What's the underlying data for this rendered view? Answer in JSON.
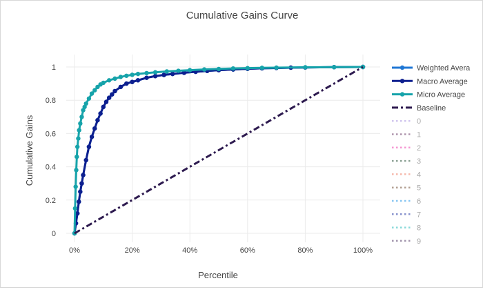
{
  "chart_data": {
    "type": "line",
    "title": "Cumulative Gains Curve",
    "xlabel": "Percentile",
    "ylabel": "Cumulative Gains",
    "xlim": [
      0,
      100
    ],
    "ylim": [
      0,
      1
    ],
    "x_ticks": [
      0,
      20,
      40,
      60,
      80,
      100
    ],
    "x_tick_labels": [
      "0%",
      "20%",
      "40%",
      "60%",
      "80%",
      "100%"
    ],
    "y_ticks": [
      0,
      0.2,
      0.4,
      0.6,
      0.8,
      1
    ],
    "y_tick_labels": [
      "0",
      "0.2",
      "0.4",
      "0.6",
      "0.8",
      "1"
    ],
    "grid": true,
    "legend_placement": "right",
    "series": [
      {
        "name": "Weighted Avera",
        "color": "#1f77d4",
        "style": "lines+markers",
        "visible": true,
        "x": [
          0,
          0.5,
          1,
          1.5,
          2,
          2.5,
          3,
          4,
          5,
          6,
          7,
          8,
          9,
          10,
          11,
          12,
          13,
          14,
          16,
          18,
          20,
          22,
          25,
          28,
          31,
          34,
          38,
          42,
          46,
          50,
          55,
          60,
          65,
          70,
          75,
          80,
          90,
          100
        ],
        "y": [
          0,
          0.06,
          0.12,
          0.19,
          0.25,
          0.3,
          0.35,
          0.44,
          0.52,
          0.58,
          0.63,
          0.68,
          0.72,
          0.76,
          0.79,
          0.815,
          0.835,
          0.855,
          0.88,
          0.9,
          0.91,
          0.92,
          0.935,
          0.945,
          0.952,
          0.958,
          0.965,
          0.971,
          0.976,
          0.981,
          0.985,
          0.989,
          0.992,
          0.994,
          0.996,
          0.997,
          0.999,
          1
        ]
      },
      {
        "name": "Macro Average",
        "color": "#0d1f8f",
        "style": "lines+markers",
        "visible": true,
        "x": [
          0,
          0.5,
          1,
          1.5,
          2,
          2.5,
          3,
          4,
          5,
          6,
          7,
          8,
          9,
          10,
          11,
          12,
          13,
          14,
          16,
          18,
          20,
          22,
          25,
          28,
          31,
          34,
          38,
          42,
          46,
          50,
          55,
          60,
          65,
          70,
          75,
          80,
          90,
          100
        ],
        "y": [
          0,
          0.06,
          0.12,
          0.19,
          0.25,
          0.3,
          0.35,
          0.44,
          0.52,
          0.58,
          0.63,
          0.68,
          0.72,
          0.76,
          0.79,
          0.815,
          0.835,
          0.855,
          0.88,
          0.9,
          0.91,
          0.92,
          0.935,
          0.945,
          0.952,
          0.958,
          0.965,
          0.971,
          0.976,
          0.981,
          0.985,
          0.989,
          0.992,
          0.994,
          0.996,
          0.997,
          0.999,
          1
        ]
      },
      {
        "name": "Micro Average",
        "color": "#16a3aa",
        "style": "lines+markers",
        "visible": true,
        "x": [
          0,
          0.2,
          0.4,
          0.6,
          0.8,
          1,
          1.3,
          1.6,
          2,
          2.5,
          3,
          3.5,
          4,
          5,
          6,
          7,
          8,
          9,
          10,
          12,
          14,
          16,
          18,
          20,
          22,
          25,
          28,
          32,
          36,
          40,
          45,
          50,
          55,
          60,
          65,
          70,
          80,
          90,
          100
        ],
        "y": [
          0,
          0.15,
          0.28,
          0.38,
          0.46,
          0.52,
          0.57,
          0.62,
          0.66,
          0.7,
          0.74,
          0.76,
          0.78,
          0.81,
          0.84,
          0.86,
          0.88,
          0.895,
          0.905,
          0.92,
          0.93,
          0.94,
          0.947,
          0.953,
          0.958,
          0.963,
          0.968,
          0.973,
          0.977,
          0.981,
          0.985,
          0.988,
          0.991,
          0.993,
          0.995,
          0.996,
          0.998,
          0.999,
          1
        ]
      },
      {
        "name": "Baseline",
        "color": "#2d1a4f",
        "style": "dashdot",
        "visible": true,
        "x": [
          0,
          100
        ],
        "y": [
          0,
          1
        ]
      },
      {
        "name": "0",
        "color": "#c5b8ea",
        "style": "dot",
        "visible": false
      },
      {
        "name": "1",
        "color": "#9a7a98",
        "style": "dot",
        "visible": false
      },
      {
        "name": "2",
        "color": "#f27cc8",
        "style": "dot",
        "visible": false
      },
      {
        "name": "3",
        "color": "#6f8a7a",
        "style": "dot",
        "visible": false
      },
      {
        "name": "4",
        "color": "#f5a898",
        "style": "dot",
        "visible": false
      },
      {
        "name": "5",
        "color": "#a08878",
        "style": "dot",
        "visible": false
      },
      {
        "name": "6",
        "color": "#6ab8f0",
        "style": "dot",
        "visible": false
      },
      {
        "name": "7",
        "color": "#6a78c0",
        "style": "dot",
        "visible": false
      },
      {
        "name": "8",
        "color": "#6cd0d0",
        "style": "dot",
        "visible": false
      },
      {
        "name": "9",
        "color": "#8a7a98",
        "style": "dot",
        "visible": false
      }
    ]
  }
}
